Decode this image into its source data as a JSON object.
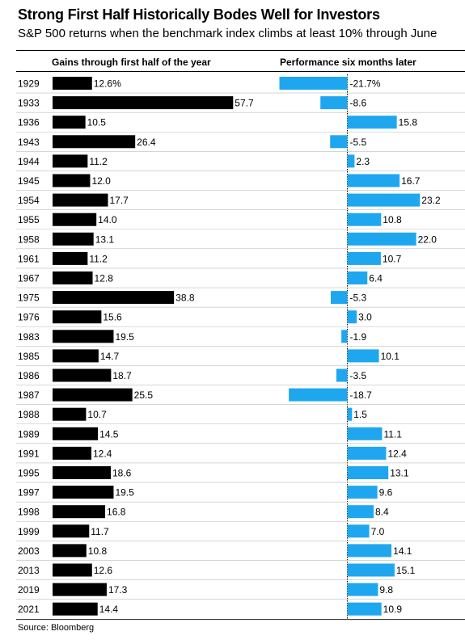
{
  "title": "Strong First Half Historically Bodes Well for Investors",
  "subtitle": "S&P 500 returns when the benchmark index climbs at least 10% through June",
  "source": "Source: Bloomberg",
  "colors": {
    "left_bar": "#000000",
    "right_bar": "#1ea7ef",
    "divider": "#bdbdbd"
  },
  "chart_data": {
    "type": "bar",
    "orientation": "horizontal",
    "categories": [
      "1929",
      "1933",
      "1936",
      "1943",
      "1944",
      "1945",
      "1954",
      "1955",
      "1958",
      "1961",
      "1967",
      "1975",
      "1976",
      "1983",
      "1985",
      "1986",
      "1987",
      "1988",
      "1989",
      "1991",
      "1995",
      "1997",
      "1998",
      "1999",
      "2003",
      "2013",
      "2019",
      "2021"
    ],
    "series": [
      {
        "name": "Gains through first half of the year",
        "values": [
          12.6,
          57.7,
          10.5,
          26.4,
          11.2,
          12.0,
          17.7,
          14.0,
          13.1,
          11.2,
          12.8,
          38.8,
          15.6,
          19.5,
          14.7,
          18.7,
          25.5,
          10.7,
          14.5,
          12.4,
          18.6,
          19.5,
          16.8,
          11.7,
          10.8,
          12.6,
          17.3,
          14.4
        ],
        "labels": [
          "12.6%",
          "57.7",
          "10.5",
          "26.4",
          "11.2",
          "12.0",
          "17.7",
          "14.0",
          "13.1",
          "11.2",
          "12.8",
          "38.8",
          "15.6",
          "19.5",
          "14.7",
          "18.7",
          "25.5",
          "10.7",
          "14.5",
          "12.4",
          "18.6",
          "19.5",
          "16.8",
          "11.7",
          "10.8",
          "12.6",
          "17.3",
          "14.4"
        ]
      },
      {
        "name": "Performance six months later",
        "values": [
          -21.7,
          -8.6,
          15.8,
          -5.5,
          2.3,
          16.7,
          23.2,
          10.8,
          22.0,
          10.7,
          6.4,
          -5.3,
          3.0,
          -1.9,
          10.1,
          -3.5,
          -18.7,
          1.5,
          11.1,
          12.4,
          13.1,
          9.6,
          8.4,
          7.0,
          14.1,
          15.1,
          9.8,
          10.9
        ],
        "labels": [
          "-21.7%",
          "-8.6",
          "15.8",
          "-5.5",
          "2.3",
          "16.7",
          "23.2",
          "10.8",
          "22.0",
          "10.7",
          "6.4",
          "-5.3",
          "3.0",
          "-1.9",
          "10.1",
          "-3.5",
          "-18.7",
          "1.5",
          "11.1",
          "12.4",
          "13.1",
          "9.6",
          "8.4",
          "7.0",
          "14.1",
          "15.1",
          "9.8",
          "10.9"
        ]
      }
    ]
  }
}
